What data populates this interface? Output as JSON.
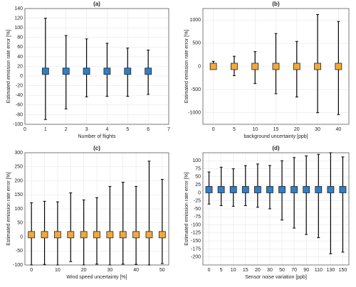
{
  "chart_data": [
    {
      "type": "errorbar",
      "title": "(a)",
      "xlabel": "Number of flights",
      "ylabel": "Estimated emission rate error [%]",
      "x": [
        1,
        2,
        3,
        4,
        5,
        6
      ],
      "xlim": [
        0,
        7
      ],
      "xticks": [
        0,
        1,
        2,
        3,
        4,
        5,
        6,
        7
      ],
      "values": [
        10,
        10,
        10,
        10,
        10,
        10
      ],
      "low": [
        -90,
        -68,
        -43,
        -42,
        -42,
        -38
      ],
      "high": [
        120,
        84,
        77,
        68,
        58,
        54
      ],
      "ylim": [
        -100,
        140
      ],
      "yticks": [
        -100,
        -80,
        -60,
        -40,
        -20,
        0,
        20,
        40,
        60,
        80,
        100,
        120,
        140
      ],
      "color": "#2f7fc7",
      "grid": true
    },
    {
      "type": "errorbar",
      "title": "(b)",
      "xlabel": "background uncertainty [ppb]",
      "ylabel": "Estimated emission rate error [%]",
      "categories": [
        "0",
        "5",
        "10",
        "15",
        "20",
        "30",
        "40"
      ],
      "values": [
        0,
        0,
        0,
        0,
        0,
        0,
        0
      ],
      "low": [
        -60,
        -200,
        -370,
        -590,
        -660,
        -1000,
        -1040
      ],
      "high": [
        110,
        220,
        320,
        710,
        540,
        1120,
        970
      ],
      "ylim": [
        -1250,
        1250
      ],
      "yticks": [
        -1000,
        -500,
        0,
        500,
        1000
      ],
      "color": "#f2a93b",
      "grid": true
    },
    {
      "type": "errorbar",
      "title": "(c)",
      "xlabel": "Wind speed uncertainty [%]",
      "ylabel": "Estimated emission rate error [%]",
      "categories": [
        "0",
        null,
        "10",
        null,
        "20",
        null,
        "30",
        null,
        "40",
        null,
        "50"
      ],
      "values": [
        8,
        8,
        8,
        8,
        8,
        8,
        8,
        8,
        8,
        8,
        8
      ],
      "low": [
        -100,
        -98,
        -100,
        -88,
        -100,
        -97,
        -100,
        -97,
        -98,
        -100,
        -95
      ],
      "high": [
        122,
        127,
        125,
        157,
        132,
        140,
        180,
        195,
        180,
        270,
        205
      ],
      "ylim": [
        -100,
        300
      ],
      "yticks": [
        -100,
        -50,
        0,
        50,
        100,
        150,
        200,
        250,
        300
      ],
      "color": "#f2a93b",
      "grid": true
    },
    {
      "type": "errorbar",
      "title": "(d)",
      "xlabel": "Sensor noise variation [ppb]",
      "ylabel": "Estimated emission rate error [%]",
      "categories": [
        "0",
        "5",
        "10",
        "15",
        "20",
        "30",
        "50",
        "70",
        "90",
        "110",
        "130",
        "150"
      ],
      "values": [
        10,
        10,
        10,
        10,
        10,
        10,
        10,
        10,
        10,
        10,
        10,
        10
      ],
      "low": [
        -35,
        -40,
        -42,
        -40,
        -45,
        -50,
        -85,
        -110,
        -130,
        -140,
        -190,
        -185
      ],
      "high": [
        65,
        80,
        75,
        85,
        90,
        85,
        100,
        110,
        115,
        120,
        125,
        112
      ],
      "ylim": [
        -225,
        125
      ],
      "yticks": [
        -200,
        -175,
        -150,
        -125,
        -100,
        -75,
        -50,
        -25,
        0,
        25,
        50,
        75,
        100
      ],
      "color": "#2f7fc7",
      "grid": true
    }
  ]
}
